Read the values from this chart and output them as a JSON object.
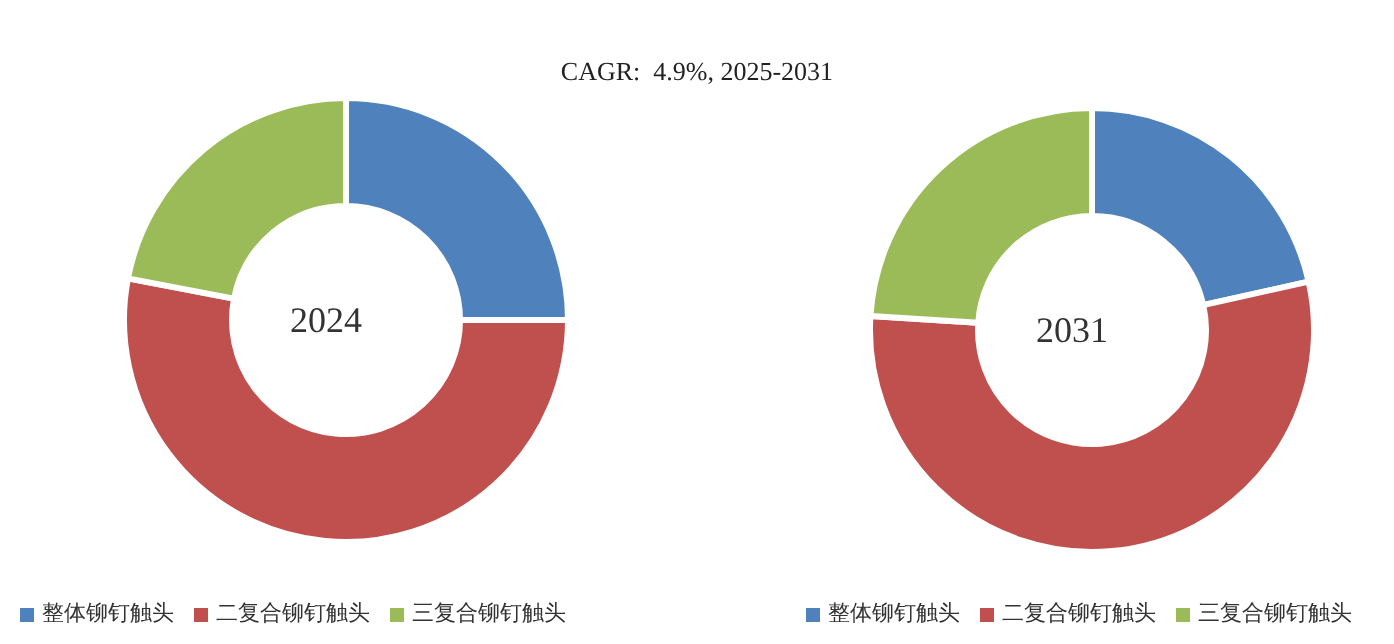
{
  "chart_data": [
    {
      "type": "donut",
      "title": "2024",
      "annotations": [
        "CAGR:  4.9%, 2025-2031"
      ],
      "categories": [
        "整体铆钉触头",
        "二复合铆钉触头",
        "三复合铆钉触头"
      ],
      "values": [
        25,
        53,
        22
      ],
      "colors": [
        "#4f81bd",
        "#c0504d",
        "#9bbb59"
      ],
      "legend": "bottom left"
    },
    {
      "type": "donut",
      "title": "2031",
      "categories": [
        "整体铆钉触头",
        "二复合铆钉触头",
        "三复合铆钉触头"
      ],
      "values": [
        21.5,
        54.5,
        24
      ],
      "colors": [
        "#4f81bd",
        "#c0504d",
        "#9bbb59"
      ],
      "legend": "bottom right"
    }
  ]
}
